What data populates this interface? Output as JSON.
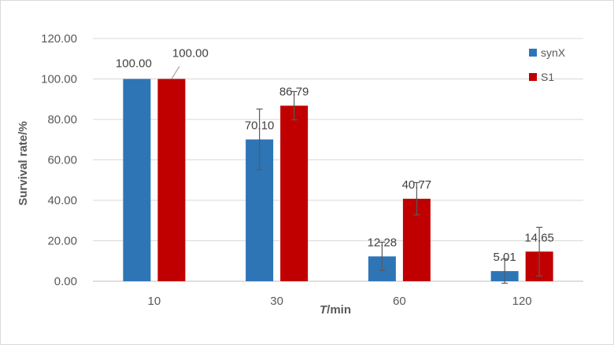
{
  "chart_data": {
    "type": "bar",
    "categories": [
      "10",
      "30",
      "60",
      "120"
    ],
    "series": [
      {
        "name": "synX",
        "color": "#2e75b6",
        "values": [
          100.0,
          70.1,
          12.28,
          5.01
        ],
        "value_labels": [
          "100.00",
          "70.10",
          "12.28",
          "5.01"
        ],
        "error": [
          0,
          15,
          7,
          6
        ]
      },
      {
        "name": "S1",
        "color": "#c00000",
        "values": [
          100.0,
          86.79,
          40.77,
          14.65
        ],
        "value_labels": [
          "100.00",
          "86.79",
          "40.77",
          "14.65"
        ],
        "error": [
          0,
          7,
          8,
          12
        ]
      }
    ],
    "ylabel": "Survival rate/%",
    "xlabel_italic": "T",
    "xlabel_rest": "/min",
    "ylim": [
      0,
      120
    ],
    "yticks": [
      "0.00",
      "20.00",
      "40.00",
      "60.00",
      "80.00",
      "100.00",
      "120.00"
    ],
    "grid": true,
    "legend_position": "top-right"
  }
}
